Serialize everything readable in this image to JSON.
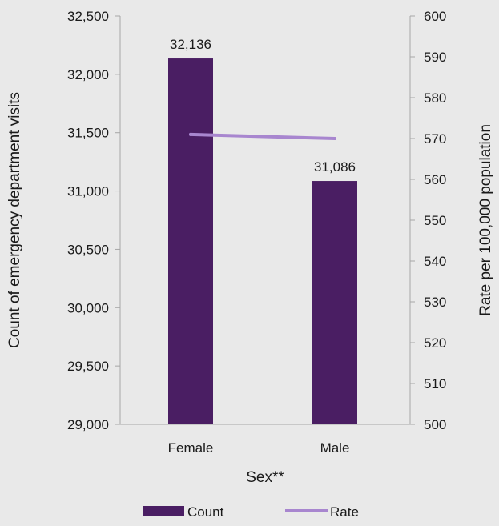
{
  "chart_data": {
    "type": "bar",
    "categories": [
      "Female",
      "Male"
    ],
    "series": [
      {
        "name": "Count",
        "type": "bar",
        "axis": "left",
        "values": [
          32136,
          31086
        ],
        "data_labels": [
          "32,136",
          "31,086"
        ],
        "color": "#4a1e63"
      },
      {
        "name": "Rate",
        "type": "line",
        "axis": "right",
        "values": [
          571,
          570
        ],
        "color": "#a886cf"
      }
    ],
    "xlabel": "Sex**",
    "ylabel": "Count of emergency department visits",
    "y2label": "Rate per 100,000 population",
    "ylim": [
      29000,
      32500
    ],
    "y2lim": [
      500,
      600
    ],
    "yticks": [
      "29,000",
      "29,500",
      "30,000",
      "30,500",
      "31,000",
      "31,500",
      "32,000",
      "32,500"
    ],
    "y2ticks": [
      "500",
      "510",
      "520",
      "530",
      "540",
      "550",
      "560",
      "570",
      "580",
      "590",
      "600"
    ],
    "legend": [
      {
        "label": "Count",
        "kind": "bar",
        "color": "#4a1e63"
      },
      {
        "label": "Rate",
        "kind": "line",
        "color": "#a886cf"
      }
    ],
    "legend_position": "bottom",
    "grid": false
  }
}
